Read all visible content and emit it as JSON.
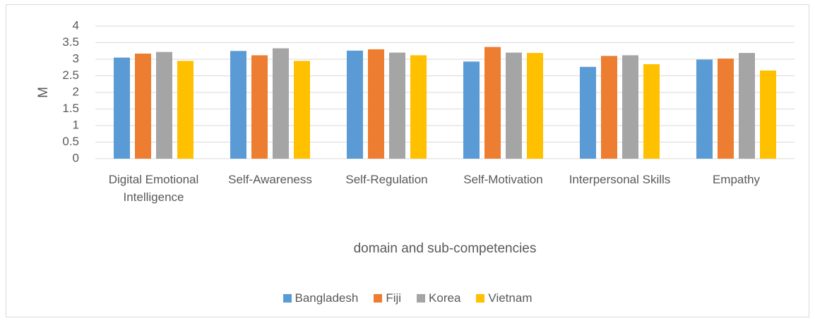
{
  "chart_data": {
    "type": "bar",
    "y_label": "M",
    "x_label": "domain and sub-competencies",
    "categories": [
      "Digital Emotional Intelligence",
      "Self-Awareness",
      "Self-Regulation",
      "Self-Motivation",
      "Interpersonal Skills",
      "Empathy"
    ],
    "series": [
      {
        "name": "Bangladesh",
        "color": "#5b9bd5",
        "values": [
          3.05,
          3.25,
          3.26,
          2.93,
          2.77,
          2.99
        ]
      },
      {
        "name": "Fiji",
        "color": "#ed7d31",
        "values": [
          3.17,
          3.12,
          3.3,
          3.37,
          3.1,
          3.02
        ]
      },
      {
        "name": "Korea",
        "color": "#a5a5a5",
        "values": [
          3.22,
          3.33,
          3.2,
          3.2,
          3.12,
          3.19
        ]
      },
      {
        "name": "Vietnam",
        "color": "#ffc000",
        "values": [
          2.95,
          2.95,
          3.12,
          3.19,
          2.85,
          2.66
        ]
      }
    ],
    "ylim": [
      0,
      4
    ],
    "yticks": [
      0,
      0.5,
      1,
      1.5,
      2,
      2.5,
      3,
      3.5,
      4
    ],
    "grid": true,
    "legend": "bottom"
  }
}
